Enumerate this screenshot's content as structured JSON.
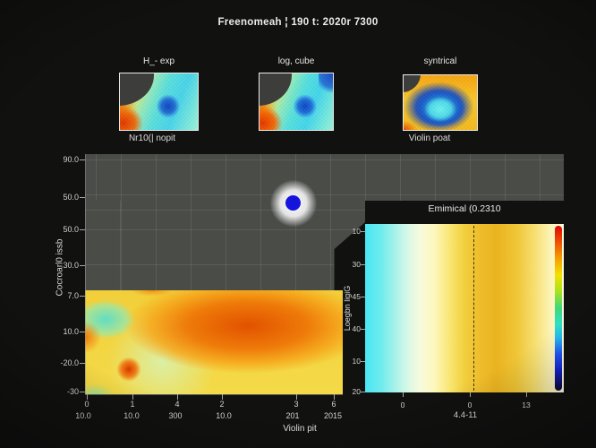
{
  "title": "Freenomeah ¦ 190 t: 2020r 7300",
  "thumbnails": [
    {
      "label": "H_- exp"
    },
    {
      "label": "log, cube"
    },
    {
      "label": "syntrical"
    }
  ],
  "captions": {
    "left": "Nr10(| nopit",
    "right": "Violin poat"
  },
  "main": {
    "ylabel": "Cocroarl0 issb",
    "yticks": [
      "90.0",
      "50.0",
      "50.0",
      "30.0",
      "7.0",
      "10.0",
      "-20.0",
      "-30"
    ],
    "xticks": [
      "0",
      "1",
      "4",
      "2",
      "3",
      "6"
    ],
    "xticks2": [
      "10.0",
      "10.0",
      "300",
      "10.0",
      "201",
      "2015"
    ],
    "xlabel": "Violin pit"
  },
  "inset": {
    "title": "Emimical (0.2310",
    "ylabel": "Loegbn ligiG",
    "yticks": [
      "10",
      "30",
      "45",
      "40",
      "10",
      "20"
    ],
    "xticks": [
      "0",
      "0",
      "13"
    ],
    "xlabel": "4.4-11"
  },
  "colors": {
    "background": "#111110",
    "panel_gray": "#4a4c48",
    "marker_blue": "#1414dd",
    "heatmap_base_yellow": "#f2d340",
    "inset_cyan": "#49e6f2",
    "inset_amber": "#eab320",
    "colorbar_top": "#e00505",
    "colorbar_bottom": "#0a0a30"
  },
  "chart_data": [
    {
      "type": "heatmap",
      "title": "H_- exp",
      "colormap": "jet",
      "description": "Small dithered heatmap; dark gray wedge masks top-left; hot red-orange core at lower-left fading through yellow-green to cyan; deep blue vortex blob at ~62% x, 58% y."
    },
    {
      "type": "heatmap",
      "title": "log, cube",
      "colormap": "jet",
      "description": "Near-duplicate of first thumbnail: gray wedge top-left, orange-red lower-left, cyan field, blue core slightly larger, extra blue patch at top-right corner."
    },
    {
      "type": "heatmap",
      "title": "syntrical",
      "colormap": "jet",
      "description": "Warm orange-yellow frame with one large cool blob centered (~50%,60%): dark blue ring around cyan core; small dark wedge top-left; red speckle bottom-left."
    },
    {
      "type": "heatmap",
      "title": "Nr10(| nopit",
      "xlabel": "Violin pit",
      "ylabel": "Cocroarl0 issb",
      "yticks": [
        "90.0",
        "50.0",
        "50.0",
        "30.0",
        "7.0",
        "10.0",
        "-20.0",
        "-30"
      ],
      "xticks": [
        "0",
        "1",
        "4",
        "2",
        "3",
        "6"
      ],
      "xticks_secondary": [
        "10.0",
        "10.0",
        "300",
        "10.0",
        "201",
        "2015"
      ],
      "grid": true,
      "marker": {
        "x_tick": "3",
        "y_tick_between": "50.0 and 30.0",
        "color": "#1414dd",
        "halo": "white glow"
      },
      "description": "Upper two-thirds is flat gray panel with faint grid and a glowing blue point marker near x-tick 3; lower band (below ~7.0) is a smooth heatmap: yellow base, cyan-green pocket at far left, hot orange-red core spanning x ticks 4–3, small intense red blob below x-tick 1."
    },
    {
      "type": "heatmap",
      "title": "Emimical (0.2310",
      "xlabel": "4.4-11",
      "ylabel": "Loegbn ligiG",
      "yticks": [
        "10",
        "30",
        "45",
        "40",
        "10",
        "20"
      ],
      "xticks": [
        "0",
        "0",
        "13"
      ],
      "dashed_vline_at_xtick": "0 (second)",
      "colorbar": {
        "orientation": "vertical",
        "top_color": "#e00505",
        "bottom_color": "#0a0a30",
        "scale": "jet"
      },
      "description": "Inset with purely horizontal gradient: cyan at left → pale cream → golden amber column right of the dashed reference line → pale cream at right edge; jet colorbar pinned inside right edge."
    }
  ]
}
